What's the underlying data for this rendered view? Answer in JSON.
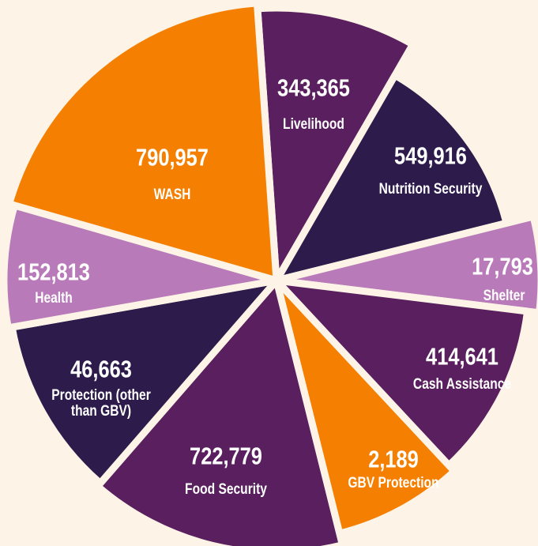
{
  "segments": [
    {
      "value": "343,365",
      "label": "Livelihood"
    },
    {
      "value": "549,916",
      "label": "Nutrition Security"
    },
    {
      "value": "17,793",
      "label": "Shelter"
    },
    {
      "value": "414,641",
      "label": "Cash Assistance"
    },
    {
      "value": "2,189",
      "label": "GBV Protection"
    },
    {
      "value": "722,779",
      "label": "Food Security"
    },
    {
      "value": "46,663",
      "label": "Protection (other than GBV)"
    },
    {
      "value": "152,813",
      "label": "Health"
    },
    {
      "value": "790,957",
      "label": "WASH"
    }
  ]
}
